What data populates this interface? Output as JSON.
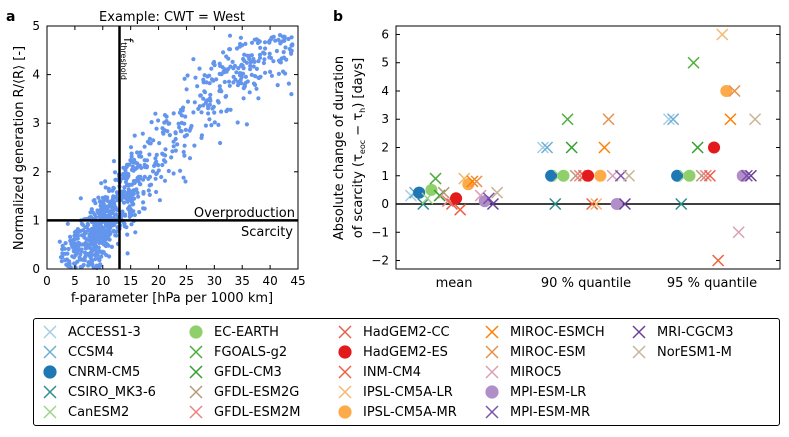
{
  "panel_a": {
    "letter": "a",
    "title": "Example: CWT = West",
    "xlabel": "f-parameter [hPa per 1000 km]",
    "ylabel": "Normalized generation R/⟨R⟩ [-]",
    "threshold_label": "f",
    "threshold_subscript": "threshold",
    "overproduction_label": "Overproduction",
    "scarcity_label": "Scarcity"
  },
  "panel_b": {
    "letter": "b",
    "ylabel_line1": "Absolute change of duration",
    "ylabel_line2": "of scarcity (τ",
    "ylabel_sub1": "eoc",
    "ylabel_mid": " − τ",
    "ylabel_sub2": "h",
    "ylabel_end": ") [days]"
  },
  "chart_data": [
    {
      "type": "scatter",
      "title": "Example: CWT = West",
      "xlabel": "f-parameter [hPa per 1000 km]",
      "ylabel": "Normalized generation R/⟨R⟩ [-]",
      "xlim": [
        0,
        45
      ],
      "ylim": [
        0,
        5
      ],
      "xticks": [
        "0",
        "5",
        "10",
        "15",
        "20",
        "25",
        "30",
        "35",
        "40",
        "45"
      ],
      "yticks": [
        "0",
        "1",
        "2",
        "3",
        "4",
        "5"
      ],
      "point_color": "#6495ed",
      "reference_lines": {
        "vertical_x": 13,
        "horizontal_y": 1
      },
      "cloud_description_sample": {
        "x": [
          0.5,
          1,
          2,
          2.5,
          3,
          3.5,
          4,
          4.5,
          5,
          5.5,
          6,
          6.5,
          7,
          7.5,
          8,
          8.5,
          9,
          9.5,
          10,
          10.5,
          11,
          11.5,
          12,
          12.5,
          13,
          13.5,
          14,
          14.5,
          15,
          15.5,
          16,
          16.5,
          17,
          17.5,
          18,
          18.5,
          19,
          19.5,
          20,
          20.5,
          21,
          21.5,
          22,
          22.5,
          23,
          23.5,
          24,
          24.5,
          25,
          25.5,
          26,
          26.5,
          27,
          27.5,
          28,
          28.5,
          29,
          29.5,
          30,
          30.5,
          31,
          31.5,
          32,
          32.5,
          33,
          33.5,
          34,
          34.5,
          35,
          35.5,
          36,
          36.5,
          37,
          37.5,
          38,
          38.5,
          39,
          39.5,
          40,
          41,
          42,
          43,
          44,
          45
        ],
        "y": [
          0.05,
          0.12,
          0.1,
          0.25,
          0.3,
          0.2,
          0.35,
          0.4,
          0.3,
          0.5,
          0.45,
          0.55,
          0.6,
          0.5,
          0.7,
          0.75,
          0.65,
          0.8,
          0.9,
          1.0,
          0.95,
          1.1,
          1.2,
          1.15,
          1.3,
          1.4,
          1.5,
          1.45,
          1.6,
          1.7,
          1.8,
          1.75,
          1.9,
          2.0,
          2.1,
          2.05,
          2.2,
          2.3,
          2.4,
          2.35,
          2.5,
          2.6,
          2.7,
          2.65,
          2.8,
          2.9,
          3.0,
          2.95,
          3.1,
          3.2,
          3.25,
          3.3,
          3.35,
          3.4,
          3.45,
          3.5,
          3.55,
          3.6,
          3.65,
          3.7,
          3.75,
          3.8,
          3.85,
          3.9,
          3.95,
          4.0,
          4.05,
          4.1,
          4.15,
          4.2,
          4.25,
          4.3,
          4.35,
          4.4,
          4.45,
          4.5,
          4.5,
          4.55,
          4.6,
          4.6,
          4.5,
          4.4,
          4.55,
          4.2
        ]
      }
    },
    {
      "type": "scatter",
      "ylabel": "Absolute change of duration of scarcity (τeoc − τh) [days]",
      "categories": [
        "mean",
        "90 % quantile",
        "95 % quantile"
      ],
      "ylim": [
        -2.3,
        6.3
      ],
      "yticks": [
        "−2",
        "−1",
        "0",
        "1",
        "2",
        "3",
        "4",
        "5",
        "6"
      ],
      "series": [
        {
          "name": "ACCESS1-3",
          "color": "#a6cee3",
          "marker": "x",
          "values": [
            0.3,
            2.0,
            3.0
          ]
        },
        {
          "name": "CCSM4",
          "color": "#6aaed6",
          "marker": "x",
          "values": [
            0.4,
            2.0,
            3.0
          ]
        },
        {
          "name": "CNRM-CM5",
          "color": "#1f78b4",
          "marker": "o",
          "values": [
            0.4,
            1.0,
            1.0
          ]
        },
        {
          "name": "CSIRO_MK3-6",
          "color": "#2c8c8c",
          "marker": "x",
          "values": [
            0.0,
            0.0,
            0.0
          ]
        },
        {
          "name": "CanESM2",
          "color": "#99d68a",
          "marker": "x",
          "values": [
            0.2,
            1.0,
            1.0
          ]
        },
        {
          "name": "EC-EARTH",
          "color": "#8fd06a",
          "marker": "o",
          "values": [
            0.5,
            1.0,
            1.0
          ]
        },
        {
          "name": "FGOALS-g2",
          "color": "#4cae3a",
          "marker": "x",
          "values": [
            0.9,
            3.0,
            5.0
          ]
        },
        {
          "name": "GFDL-CM3",
          "color": "#33a02c",
          "marker": "x",
          "values": [
            0.3,
            2.0,
            2.0
          ]
        },
        {
          "name": "GFDL-ESM2G",
          "color": "#b89a7a",
          "marker": "x",
          "values": [
            0.4,
            1.0,
            1.0
          ]
        },
        {
          "name": "GFDL-ESM2M",
          "color": "#f08080",
          "marker": "x",
          "values": [
            0.1,
            1.0,
            1.0
          ]
        },
        {
          "name": "HadGEM2-CC",
          "color": "#e8604c",
          "marker": "x",
          "values": [
            0.0,
            1.0,
            1.0
          ]
        },
        {
          "name": "HadGEM2-ES",
          "color": "#e31a1c",
          "marker": "o",
          "values": [
            0.2,
            1.0,
            2.0
          ]
        },
        {
          "name": "INM-CM4",
          "color": "#f06040",
          "marker": "x",
          "values": [
            -0.2,
            0.0,
            -2.0
          ]
        },
        {
          "name": "IPSL-CM5A-LR",
          "color": "#f5b870",
          "marker": "x",
          "values": [
            0.9,
            0.0,
            6.0
          ]
        },
        {
          "name": "IPSL-CM5A-MR",
          "color": "#fdaa48",
          "marker": "o",
          "values": [
            0.7,
            1.0,
            4.0
          ]
        },
        {
          "name": "MIROC-ESMCH",
          "color": "#ff7f00",
          "marker": "x",
          "values": [
            0.8,
            2.0,
            3.0
          ]
        },
        {
          "name": "MIROC-ESM",
          "color": "#e8904a",
          "marker": "x",
          "values": [
            0.8,
            3.0,
            4.0
          ]
        },
        {
          "name": "MIROC5",
          "color": "#d9a0b0",
          "marker": "x",
          "values": [
            0.3,
            1.0,
            -1.0
          ]
        },
        {
          "name": "MPI-ESM-LR",
          "color": "#b08ec8",
          "marker": "o",
          "values": [
            0.1,
            0.0,
            1.0
          ]
        },
        {
          "name": "MPI-ESM-MR",
          "color": "#7b52ab",
          "marker": "x",
          "values": [
            0.2,
            1.0,
            1.0
          ]
        },
        {
          "name": "MRI-CGCM3",
          "color": "#6a3d9a",
          "marker": "x",
          "values": [
            0.0,
            0.0,
            1.0
          ]
        },
        {
          "name": "NorESM1-M",
          "color": "#c8b496",
          "marker": "x",
          "values": [
            0.4,
            1.0,
            3.0
          ]
        }
      ]
    }
  ]
}
